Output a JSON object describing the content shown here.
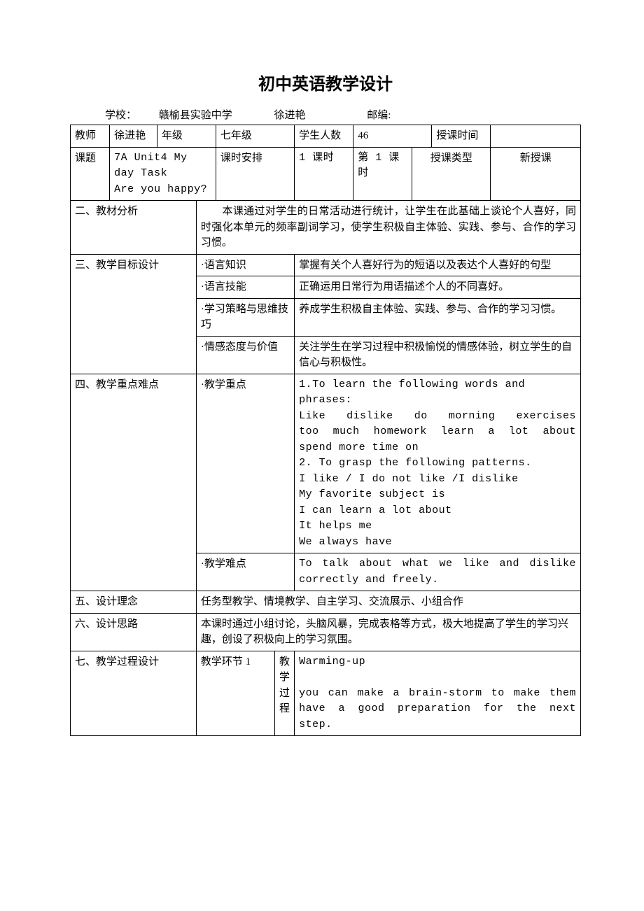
{
  "title": "初中英语教学设计",
  "meta": {
    "schoolLabel": "学校：",
    "schoolValue": "赣榆县实验中学",
    "authorValue": "徐进艳",
    "postLabel": "邮编:"
  },
  "row1": {
    "teacherLabel": "教师",
    "teacherValue": "徐进艳",
    "gradeLabel": "年级",
    "gradeValue": "七年级",
    "studentCountLabel": "学生人数",
    "studentCountValue": "46",
    "timeLabel": "授课时间",
    "timeValue": ""
  },
  "row2": {
    "topicLabel": "课题",
    "topicValue": "7A Unit4 My day Task\nAre you happy?",
    "scheduleLabel": "课时安排",
    "scheduleValue": "1 课时",
    "whichLabel": "第 1 课时",
    "typeLabel": "授课类型",
    "typeValue": "新授课"
  },
  "analysis": {
    "label": "二、教材分析",
    "text": "　　本课通过对学生的日常活动进行统计，让学生在此基础上谈论个人喜好，同时强化本单元的频率副词学习，使学生积极自主体验、实践、参与、合作的学习习惯。"
  },
  "objectives": {
    "label": "三、教学目标设计",
    "rows": [
      {
        "k": "·语言知识",
        "v": "掌握有关个人喜好行为的短语以及表达个人喜好的句型"
      },
      {
        "k": "·语言技能",
        "v": "正确运用日常行为用语描述个人的不同喜好。"
      },
      {
        "k": "·学习策略与思维技巧",
        "v": "养成学生积极自主体验、实践、参与、合作的学习习惯。"
      },
      {
        "k": "·情感态度与价值",
        "v": "关注学生在学习过程中积极愉悦的情感体验，树立学生的自信心与积极性。"
      }
    ]
  },
  "keypoints": {
    "label": "四、教学重点难点",
    "focusLabel": "·教学重点",
    "focusLines": [
      "1.To learn the following words and phrases:",
      " Like  dislike   do  morning  exercises",
      " too much homework     learn a lot about",
      " spend more time on",
      " 2. To grasp the following patterns.",
      " I like / I do not like /I dislike",
      " My favorite subject is",
      " I can learn a lot about",
      " It helps me",
      " We always have"
    ],
    "diffLabel": "·教学难点",
    "diffText": "To  talk  about  what  we  like  and  dislike correctly and freely."
  },
  "concept": {
    "label": "五、设计理念",
    "text": "任务型教学、情境教学、自主学习、交流展示、小组合作"
  },
  "idea": {
    "label": "六、设计思路",
    "text": "本课时通过小组讨论，头脑风暴，完成表格等方式，极大地提高了学生的学习兴趣，创设了积极向上的学习氛围。"
  },
  "process": {
    "label": "七、教学过程设计",
    "stepLabel": "教学环节 1",
    "procLabel": "教学过程",
    "procText": "Warming-up\n\nyou can make a brain-storm to make them have a good preparation for the next step."
  }
}
